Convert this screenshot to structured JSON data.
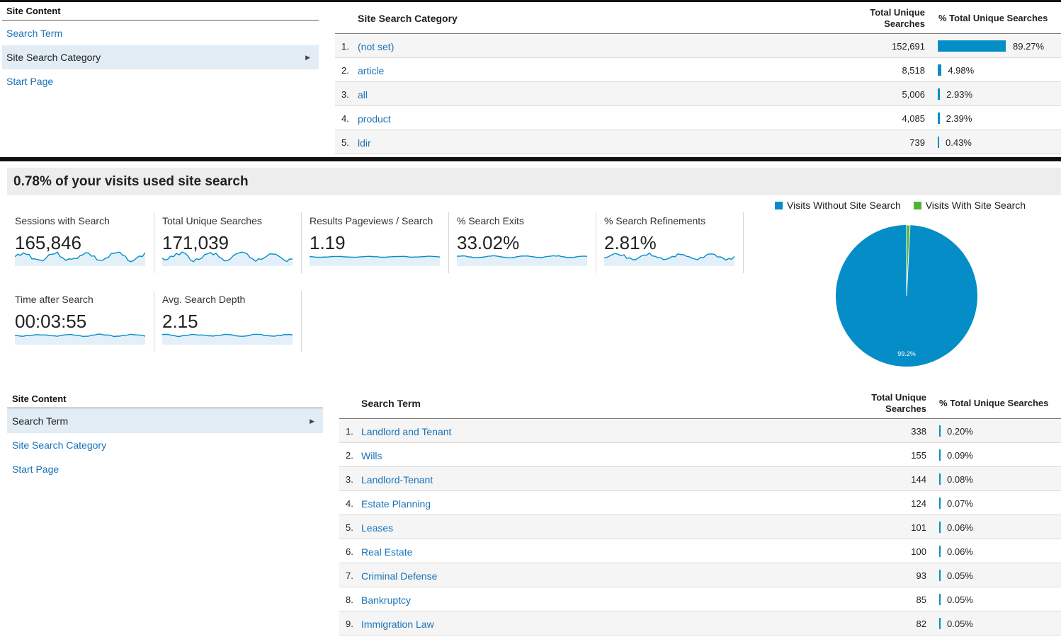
{
  "colors": {
    "link": "#1a73b8",
    "bar": "#058dc7",
    "pie_without": "#058dc7",
    "pie_with": "#50b432",
    "sparkline": "#058dc7",
    "sparkline_fill": "#e3f0f9"
  },
  "top_nav": {
    "header": "Site Content",
    "items": [
      {
        "label": "Search Term"
      },
      {
        "label": "Site Search Category",
        "active": true
      },
      {
        "label": "Start Page"
      }
    ]
  },
  "top_table": {
    "col_name": "Site Search Category",
    "col_searches_line1": "Total Unique",
    "col_searches_line2": "Searches",
    "col_pct": "% Total Unique Searches",
    "rows": [
      {
        "index": "1.",
        "name": "(not set)",
        "searches": "152,691",
        "pct": "89.27%",
        "pct_value": 89.27
      },
      {
        "index": "2.",
        "name": "article",
        "searches": "8,518",
        "pct": "4.98%",
        "pct_value": 4.98
      },
      {
        "index": "3.",
        "name": "all",
        "searches": "5,006",
        "pct": "2.93%",
        "pct_value": 2.93
      },
      {
        "index": "4.",
        "name": "product",
        "searches": "4,085",
        "pct": "2.39%",
        "pct_value": 2.39
      },
      {
        "index": "5.",
        "name": "ldir",
        "searches": "739",
        "pct": "0.43%",
        "pct_value": 0.43
      }
    ]
  },
  "summary": {
    "headline": "0.78% of your visits used site search"
  },
  "metrics": [
    {
      "label": "Sessions with Search",
      "value": "165,846"
    },
    {
      "label": "Total Unique Searches",
      "value": "171,039"
    },
    {
      "label": "Results Pageviews / Search",
      "value": "1.19"
    },
    {
      "label": "% Search Exits",
      "value": "33.02%"
    },
    {
      "label": "% Search Refinements",
      "value": "2.81%"
    },
    {
      "label": "Time after Search",
      "value": "00:03:55"
    },
    {
      "label": "Avg. Search Depth",
      "value": "2.15"
    }
  ],
  "pie": {
    "legend_without": "Visits Without Site Search",
    "legend_with": "Visits With Site Search",
    "without_pct": 99.2,
    "with_pct": 0.78,
    "slice_label": "99.2%"
  },
  "bottom_nav": {
    "header": "Site Content",
    "items": [
      {
        "label": "Search Term",
        "active": true
      },
      {
        "label": "Site Search Category"
      },
      {
        "label": "Start Page"
      }
    ]
  },
  "bottom_table": {
    "col_name": "Search Term",
    "col_searches_line1": "Total Unique",
    "col_searches_line2": "Searches",
    "col_pct": "% Total Unique Searches",
    "rows": [
      {
        "index": "1.",
        "name": "Landlord and Tenant",
        "searches": "338",
        "pct": "0.20%",
        "pct_value": 0.2
      },
      {
        "index": "2.",
        "name": "Wills",
        "searches": "155",
        "pct": "0.09%",
        "pct_value": 0.09
      },
      {
        "index": "3.",
        "name": "Landlord-Tenant",
        "searches": "144",
        "pct": "0.08%",
        "pct_value": 0.08
      },
      {
        "index": "4.",
        "name": "Estate Planning",
        "searches": "124",
        "pct": "0.07%",
        "pct_value": 0.07
      },
      {
        "index": "5.",
        "name": "Leases",
        "searches": "101",
        "pct": "0.06%",
        "pct_value": 0.06
      },
      {
        "index": "6.",
        "name": "Real Estate",
        "searches": "100",
        "pct": "0.06%",
        "pct_value": 0.06
      },
      {
        "index": "7.",
        "name": "Criminal Defense",
        "searches": "93",
        "pct": "0.05%",
        "pct_value": 0.05
      },
      {
        "index": "8.",
        "name": "Bankruptcy",
        "searches": "85",
        "pct": "0.05%",
        "pct_value": 0.05
      },
      {
        "index": "9.",
        "name": "Immigration Law",
        "searches": "82",
        "pct": "0.05%",
        "pct_value": 0.05
      }
    ]
  }
}
